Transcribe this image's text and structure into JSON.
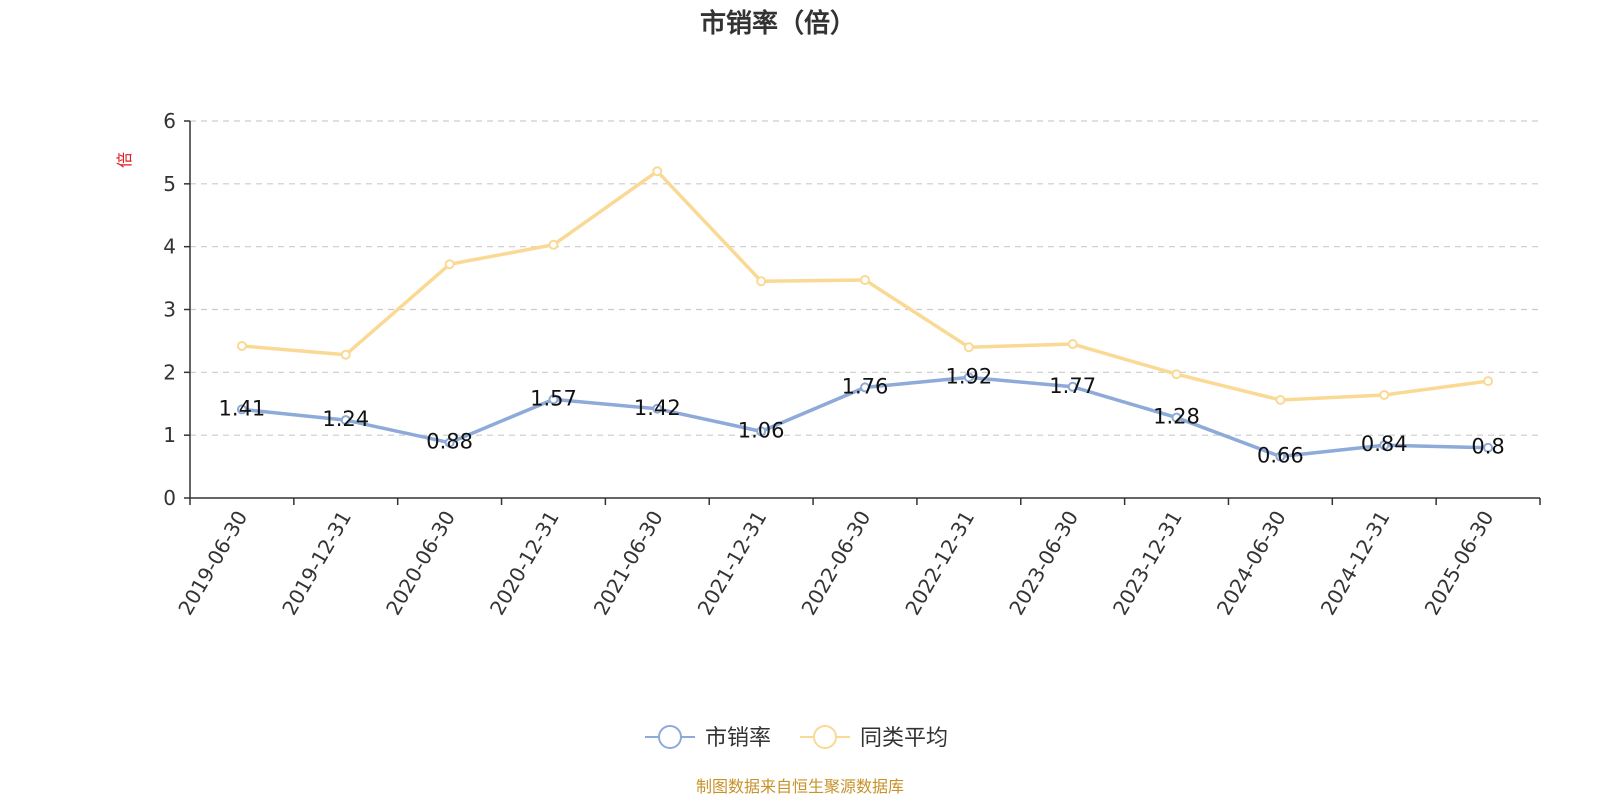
{
  "chart_data": {
    "type": "line",
    "title": "市销率（倍）",
    "ylabel": "倍",
    "xlabel": "",
    "ylim": [
      0,
      6
    ],
    "yticks": [
      0,
      1,
      2,
      3,
      4,
      5,
      6
    ],
    "grid": true,
    "legend_position": "bottom-center",
    "categories": [
      "2019-06-30",
      "2019-12-31",
      "2020-06-30",
      "2020-12-31",
      "2021-06-30",
      "2021-12-31",
      "2022-06-30",
      "2022-12-31",
      "2023-06-30",
      "2023-12-31",
      "2024-06-30",
      "2024-12-31",
      "2025-06-30"
    ],
    "series": [
      {
        "name": "市销率",
        "color": "#8eaad8",
        "values": [
          1.41,
          1.24,
          0.88,
          1.57,
          1.42,
          1.06,
          1.76,
          1.92,
          1.77,
          1.28,
          0.66,
          0.84,
          0.8
        ],
        "labels": [
          "1.41",
          "1.24",
          "0.88",
          "1.57",
          "1.42",
          "1.06",
          "1.76",
          "1.92",
          "1.77",
          "1.28",
          "0.66",
          "0.84",
          "0.8"
        ]
      },
      {
        "name": "同类平均",
        "color": "#fad995",
        "values": [
          2.42,
          2.28,
          3.72,
          4.03,
          5.2,
          3.45,
          3.47,
          2.4,
          2.45,
          1.97,
          1.56,
          1.64,
          1.86
        ]
      }
    ]
  },
  "footer": {
    "source_text": "制图数据来自恒生聚源数据库"
  }
}
